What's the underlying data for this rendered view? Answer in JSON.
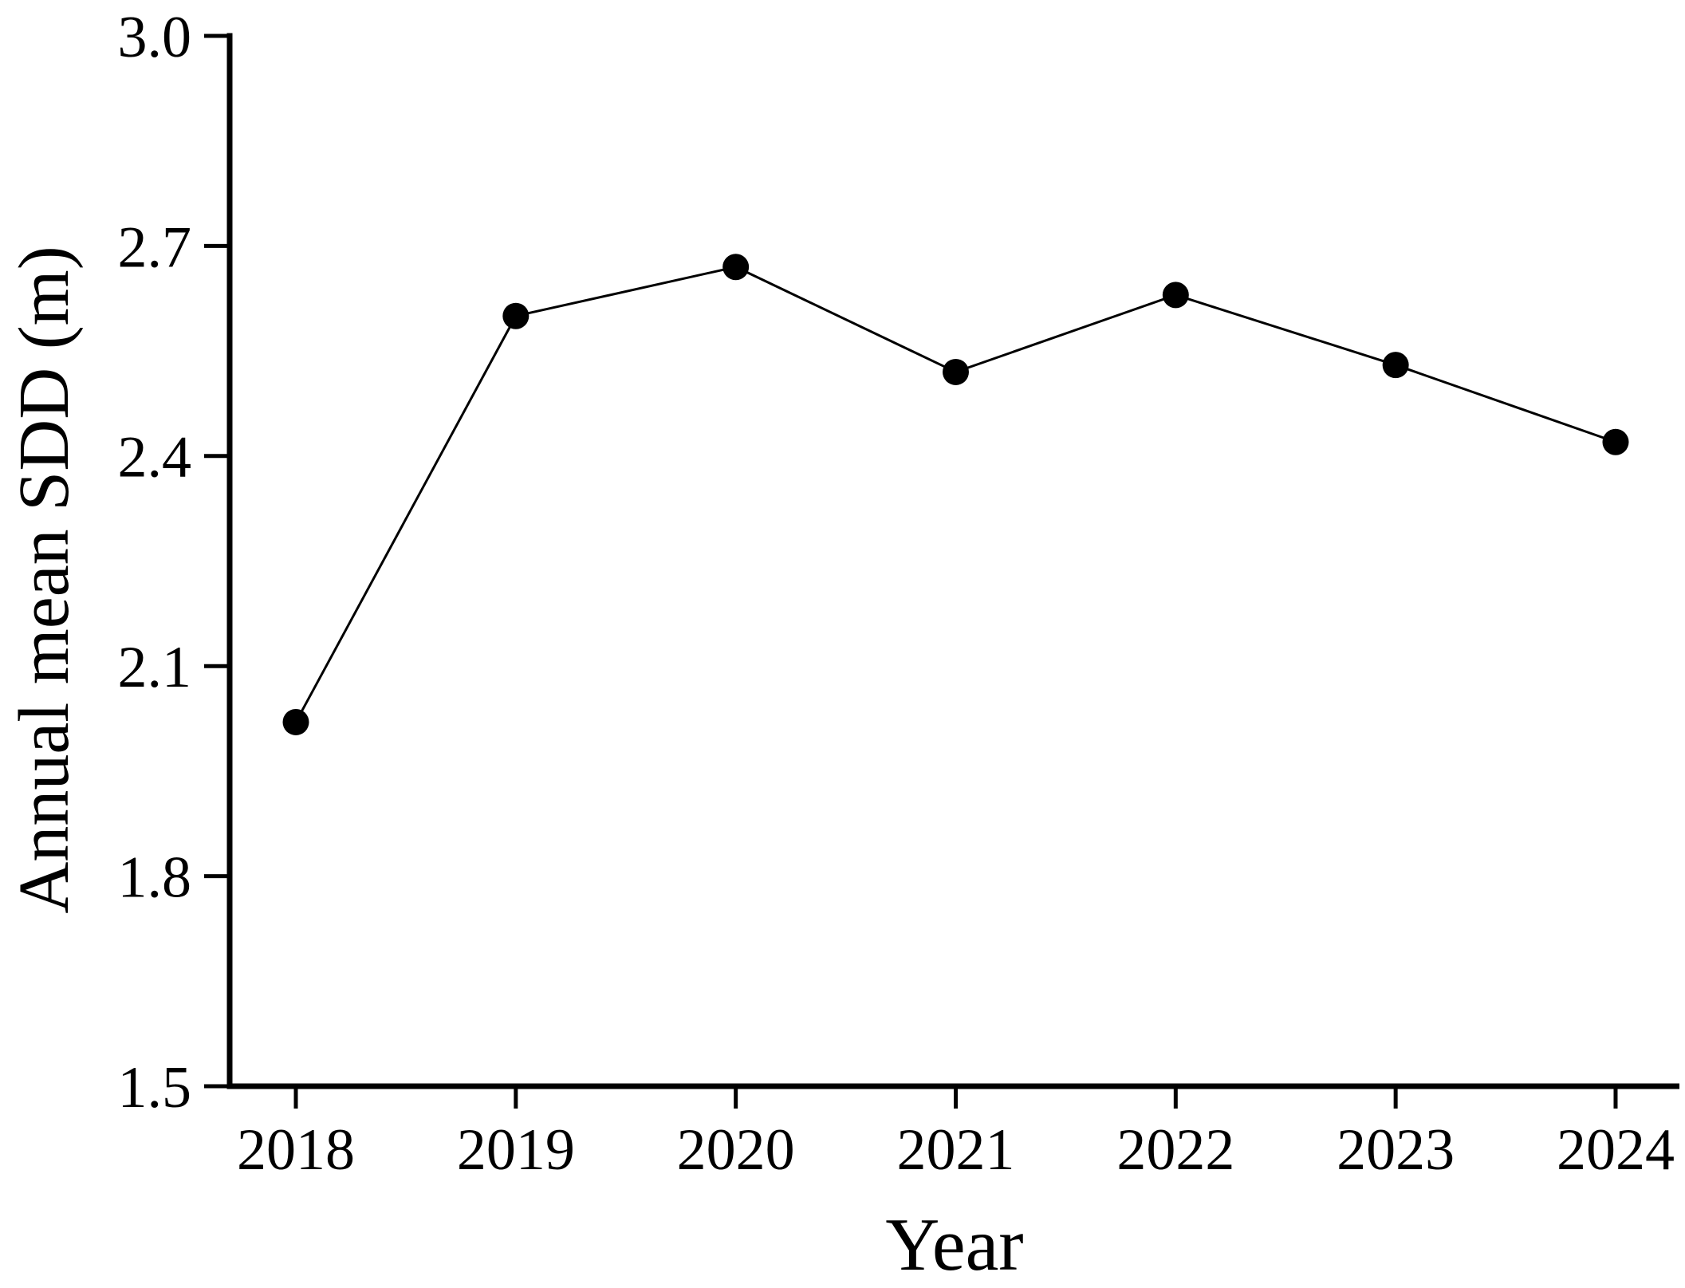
{
  "chart_data": {
    "type": "line",
    "title": "",
    "xlabel": "Year",
    "ylabel": "Annual mean SDD (m)",
    "x": [
      2018,
      2019,
      2020,
      2021,
      2022,
      2023,
      2024
    ],
    "xtick_labels": [
      "2018",
      "2019",
      "2020",
      "2021",
      "2022",
      "2023",
      "2024"
    ],
    "series": [
      {
        "name": "Annual mean SDD",
        "values": [
          2.02,
          2.6,
          2.67,
          2.52,
          2.63,
          2.53,
          2.42
        ]
      }
    ],
    "ylim": [
      1.5,
      3.0
    ],
    "yticks": [
      3.0,
      2.7,
      2.4,
      2.1,
      1.8,
      1.5
    ],
    "ytick_labels": [
      "3.0",
      "2.7",
      "2.4",
      "2.1",
      "1.8",
      "1.5"
    ],
    "grid": false,
    "legend": null,
    "marker": "filled-circle"
  },
  "style": {
    "background": "#ffffff",
    "axis_color": "#000000",
    "line_color": "#000000",
    "marker_color": "#000000",
    "text_color": "#000000"
  }
}
